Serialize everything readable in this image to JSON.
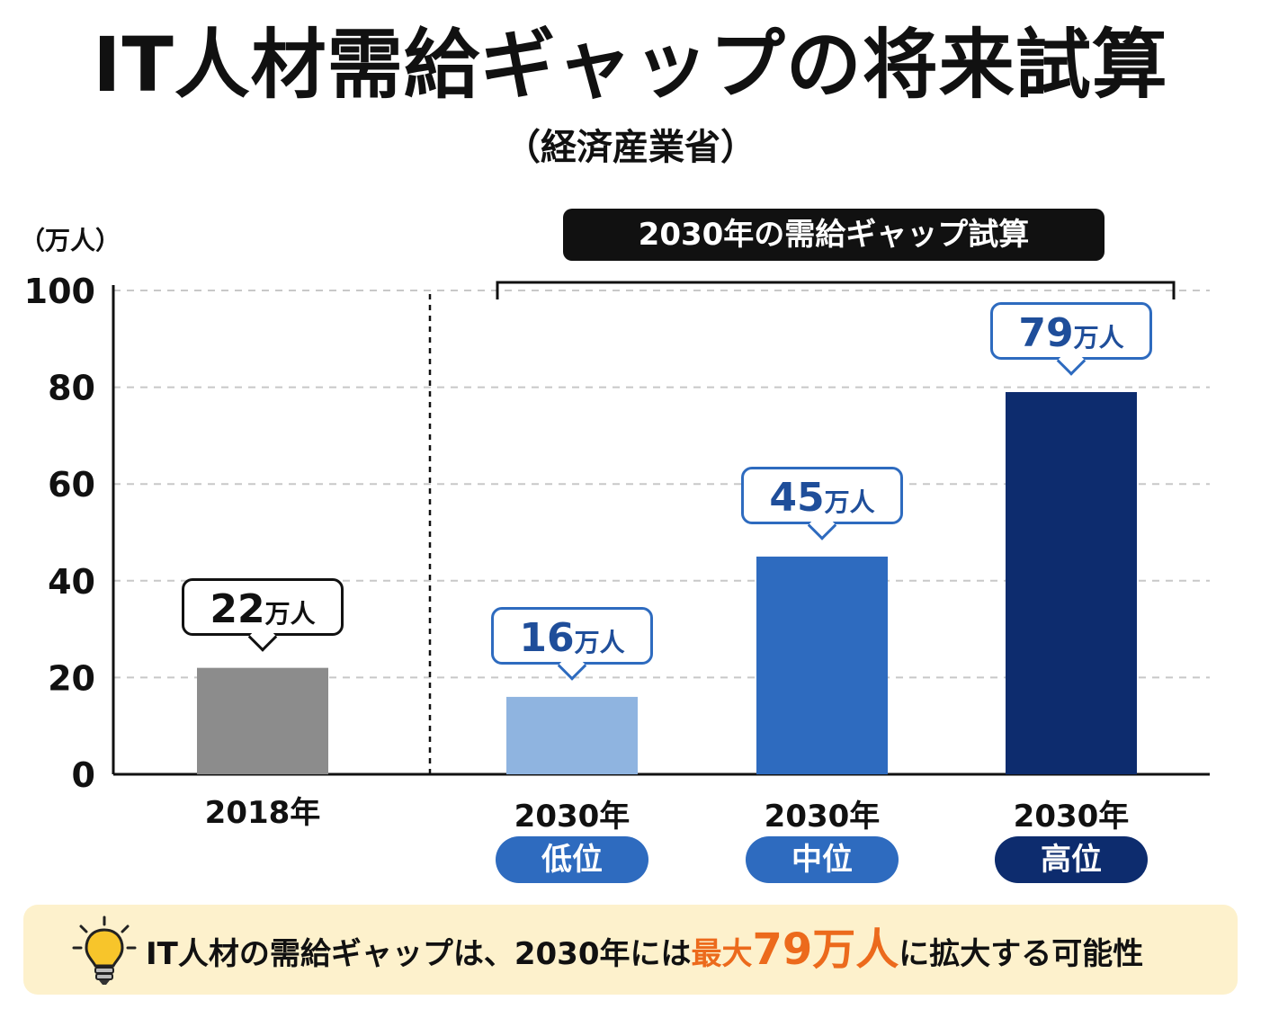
{
  "title": "IT人材需給ギャップの将来試算",
  "subtitle": "（経済産業省）",
  "range_label": "2030年の需給ギャップ試算",
  "chart_data": {
    "type": "bar",
    "title": "IT人材需給ギャップの将来試算",
    "subtitle": "（経済産業省）",
    "ylabel": "（万人）",
    "ylim": [
      0,
      100
    ],
    "yticks": [
      "0",
      "20",
      "40",
      "60",
      "80",
      "100"
    ],
    "grid": true,
    "categories": [
      "2018年",
      "2030年",
      "2030年",
      "2030年"
    ],
    "scenarios": [
      "",
      "低位",
      "中位",
      "高位"
    ],
    "values": [
      22,
      16,
      45,
      79
    ],
    "value_labels": [
      "22",
      "16",
      "45",
      "79"
    ],
    "value_suffix": "万人",
    "colors": [
      "#8c8c8c",
      "#8fb4e0",
      "#2e6bbf",
      "#0d2c6e"
    ],
    "callout_border_colors": [
      "#111111",
      "#2e6bbf",
      "#2e6bbf",
      "#2e6bbf"
    ],
    "callout_text_colors": [
      "#111111",
      "#1f4e9a",
      "#1f4e9a",
      "#1f4e9a"
    ]
  },
  "banner": {
    "text_before": "IT人材の需給ギャップは、2030年には",
    "highlight_1": "最大",
    "highlight_2": "79万人",
    "text_after": "に拡大する可能性"
  }
}
